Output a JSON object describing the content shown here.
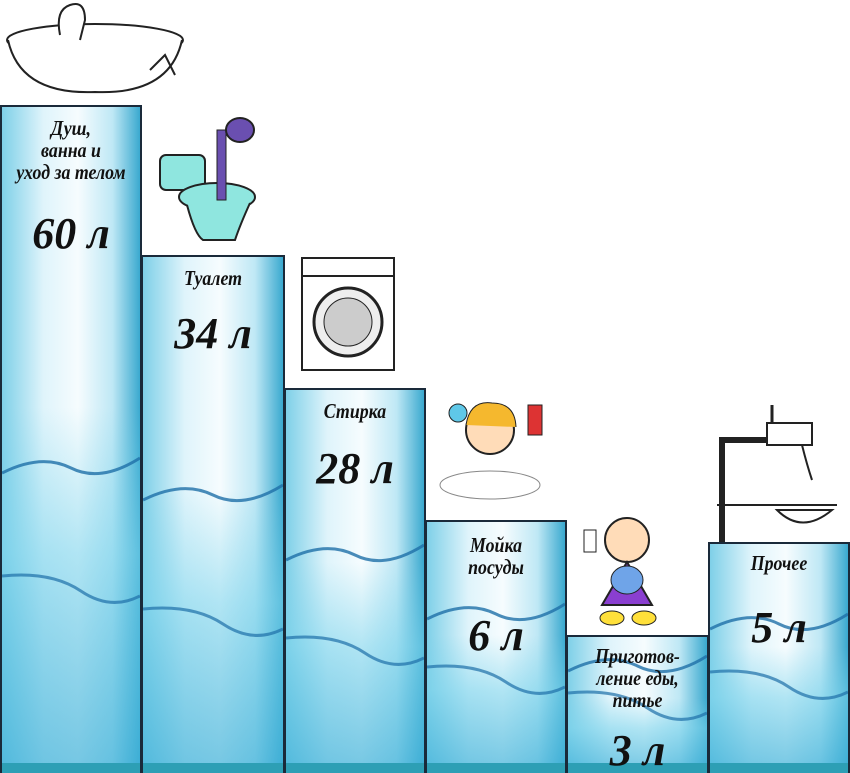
{
  "chart_data": {
    "type": "bar",
    "unit": "л",
    "categories": [
      "Душ, ванна и уход за телом",
      "Туалет",
      "Стирка",
      "Мойка посуды",
      "Приготов-ление еды, питье",
      "Прочее"
    ],
    "label_lines": [
      [
        "Душ,",
        "ванна и",
        "уход за телом"
      ],
      [
        "Туалет"
      ],
      [
        "Стирка"
      ],
      [
        "Мойка",
        "посуды"
      ],
      [
        "Приготов-",
        "ление еды,",
        "питье"
      ],
      [
        "Прочее"
      ]
    ],
    "values": [
      60,
      34,
      28,
      6,
      3,
      5
    ],
    "value_labels": [
      "60 л",
      "34 л",
      "28 л",
      "6 л",
      "3 л",
      "5 л"
    ],
    "icons": [
      "bathtub-illustration",
      "toilet-illustration",
      "washing-machine-illustration",
      "girl-washing-dishes-illustration",
      "girl-cooking-illustration",
      "water-tap-illustration"
    ],
    "colors": {
      "bar_light": "#dff4fb",
      "bar_dark": "#3aa9cf",
      "water": "#1e6fa8",
      "border": "#1a2a3a"
    }
  }
}
